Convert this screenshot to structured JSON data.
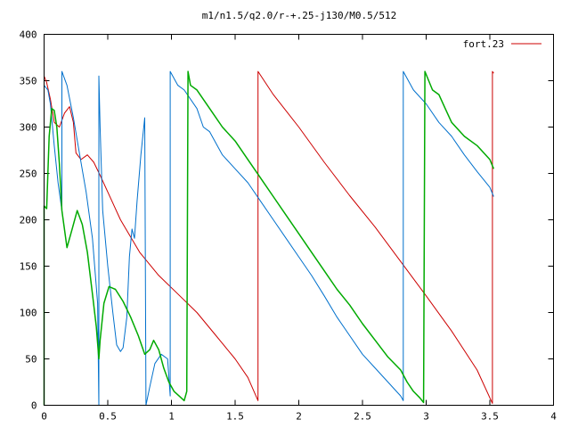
{
  "chart_data": {
    "type": "line",
    "title": "m1/n1.5/q2.0/r-+.25-j130/M0.5/512",
    "xlim": [
      0,
      4
    ],
    "ylim": [
      0,
      400
    ],
    "x_ticks": [
      0,
      0.5,
      1,
      1.5,
      2,
      2.5,
      3,
      3.5,
      4
    ],
    "x_tick_labels": [
      "0",
      "0.5",
      "1",
      "1.5",
      "2",
      "2.5",
      "3",
      "3.5",
      "4"
    ],
    "y_ticks": [
      0,
      50,
      100,
      150,
      200,
      250,
      300,
      350,
      400
    ],
    "y_tick_labels": [
      "0",
      "50",
      "100",
      "150",
      "200",
      "250",
      "300",
      "350",
      "400"
    ],
    "grid": false,
    "legend_position": "top-right",
    "legend_entries": [
      {
        "label": "fort.23",
        "color": "#cc0000"
      }
    ],
    "series": [
      {
        "name": "fort.23",
        "color": "#cc0000",
        "points": [
          [
            0.0,
            0
          ],
          [
            0.0,
            355
          ],
          [
            0.02,
            348
          ],
          [
            0.05,
            330
          ],
          [
            0.08,
            305
          ],
          [
            0.12,
            300
          ],
          [
            0.16,
            315
          ],
          [
            0.2,
            322
          ],
          [
            0.23,
            305
          ],
          [
            0.25,
            272
          ],
          [
            0.29,
            265
          ],
          [
            0.34,
            270
          ],
          [
            0.39,
            262
          ],
          [
            0.44,
            248
          ],
          [
            0.5,
            230
          ],
          [
            0.6,
            200
          ],
          [
            0.75,
            165
          ],
          [
            0.9,
            140
          ],
          [
            1.05,
            120
          ],
          [
            1.2,
            100
          ],
          [
            1.35,
            75
          ],
          [
            1.5,
            50
          ],
          [
            1.6,
            30
          ],
          [
            1.68,
            5
          ],
          [
            1.68,
            360
          ],
          [
            1.8,
            335
          ],
          [
            2.0,
            300
          ],
          [
            2.2,
            262
          ],
          [
            2.4,
            226
          ],
          [
            2.6,
            192
          ],
          [
            2.8,
            155
          ],
          [
            3.0,
            118
          ],
          [
            3.2,
            80
          ],
          [
            3.4,
            38
          ],
          [
            3.52,
            2
          ],
          [
            3.52,
            360
          ],
          [
            3.53,
            358
          ]
        ]
      },
      {
        "name": "",
        "color": "#0070cc",
        "points": [
          [
            0.0,
            0
          ],
          [
            0.0,
            345
          ],
          [
            0.03,
            340
          ],
          [
            0.05,
            325
          ],
          [
            0.08,
            280
          ],
          [
            0.11,
            240
          ],
          [
            0.14,
            210
          ],
          [
            0.14,
            360
          ],
          [
            0.18,
            345
          ],
          [
            0.23,
            310
          ],
          [
            0.28,
            270
          ],
          [
            0.33,
            230
          ],
          [
            0.38,
            180
          ],
          [
            0.42,
            110
          ],
          [
            0.43,
            0
          ],
          [
            0.43,
            355
          ],
          [
            0.44,
            300
          ],
          [
            0.46,
            210
          ],
          [
            0.5,
            150
          ],
          [
            0.54,
            100
          ],
          [
            0.57,
            65
          ],
          [
            0.6,
            58
          ],
          [
            0.62,
            62
          ],
          [
            0.65,
            95
          ],
          [
            0.67,
            160
          ],
          [
            0.69,
            190
          ],
          [
            0.71,
            180
          ],
          [
            0.73,
            220
          ],
          [
            0.76,
            270
          ],
          [
            0.79,
            310
          ],
          [
            0.8,
            0
          ],
          [
            0.8,
            0
          ],
          [
            0.83,
            20
          ],
          [
            0.87,
            45
          ],
          [
            0.92,
            55
          ],
          [
            0.97,
            50
          ],
          [
            0.99,
            10
          ],
          [
            0.99,
            360
          ],
          [
            1.05,
            345
          ],
          [
            1.1,
            340
          ],
          [
            1.2,
            320
          ],
          [
            1.25,
            300
          ],
          [
            1.3,
            295
          ],
          [
            1.4,
            270
          ],
          [
            1.5,
            255
          ],
          [
            1.6,
            240
          ],
          [
            1.7,
            220
          ],
          [
            1.8,
            200
          ],
          [
            1.9,
            180
          ],
          [
            2.0,
            160
          ],
          [
            2.1,
            140
          ],
          [
            2.2,
            118
          ],
          [
            2.3,
            95
          ],
          [
            2.4,
            75
          ],
          [
            2.5,
            55
          ],
          [
            2.6,
            40
          ],
          [
            2.7,
            25
          ],
          [
            2.8,
            10
          ],
          [
            2.82,
            5
          ],
          [
            2.82,
            360
          ],
          [
            2.9,
            340
          ],
          [
            3.0,
            325
          ],
          [
            3.1,
            305
          ],
          [
            3.2,
            290
          ],
          [
            3.3,
            270
          ],
          [
            3.4,
            252
          ],
          [
            3.5,
            235
          ],
          [
            3.53,
            225
          ]
        ]
      },
      {
        "name": "",
        "color": "#00aa00",
        "points": [
          [
            0.0,
            0
          ],
          [
            0.0,
            215
          ],
          [
            0.02,
            212
          ],
          [
            0.04,
            290
          ],
          [
            0.06,
            320
          ],
          [
            0.08,
            318
          ],
          [
            0.1,
            300
          ],
          [
            0.12,
            260
          ],
          [
            0.14,
            210
          ],
          [
            0.18,
            170
          ],
          [
            0.22,
            190
          ],
          [
            0.26,
            210
          ],
          [
            0.3,
            195
          ],
          [
            0.34,
            165
          ],
          [
            0.38,
            120
          ],
          [
            0.41,
            85
          ],
          [
            0.43,
            50
          ],
          [
            0.44,
            70
          ],
          [
            0.47,
            110
          ],
          [
            0.51,
            128
          ],
          [
            0.56,
            125
          ],
          [
            0.62,
            112
          ],
          [
            0.68,
            95
          ],
          [
            0.74,
            75
          ],
          [
            0.79,
            55
          ],
          [
            0.83,
            60
          ],
          [
            0.86,
            70
          ],
          [
            0.9,
            60
          ],
          [
            0.94,
            40
          ],
          [
            0.98,
            25
          ],
          [
            1.02,
            15
          ],
          [
            1.06,
            10
          ],
          [
            1.1,
            5
          ],
          [
            1.12,
            15
          ],
          [
            1.13,
            360
          ],
          [
            1.15,
            345
          ],
          [
            1.2,
            340
          ],
          [
            1.3,
            320
          ],
          [
            1.4,
            300
          ],
          [
            1.5,
            285
          ],
          [
            1.6,
            265
          ],
          [
            1.7,
            245
          ],
          [
            1.8,
            225
          ],
          [
            1.9,
            205
          ],
          [
            2.0,
            185
          ],
          [
            2.1,
            165
          ],
          [
            2.2,
            145
          ],
          [
            2.3,
            125
          ],
          [
            2.4,
            108
          ],
          [
            2.5,
            88
          ],
          [
            2.6,
            70
          ],
          [
            2.7,
            52
          ],
          [
            2.8,
            38
          ],
          [
            2.85,
            25
          ],
          [
            2.9,
            15
          ],
          [
            2.95,
            8
          ],
          [
            2.98,
            3
          ],
          [
            2.99,
            360
          ],
          [
            3.05,
            340
          ],
          [
            3.1,
            335
          ],
          [
            3.15,
            320
          ],
          [
            3.2,
            305
          ],
          [
            3.3,
            290
          ],
          [
            3.4,
            280
          ],
          [
            3.5,
            265
          ],
          [
            3.53,
            255
          ]
        ]
      }
    ]
  }
}
